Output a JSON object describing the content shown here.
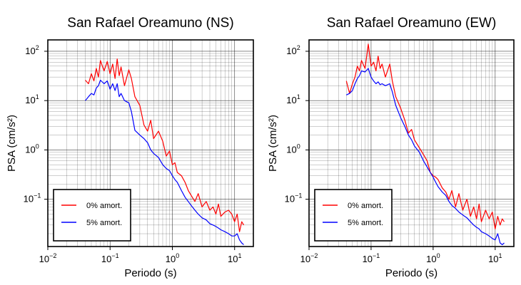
{
  "chart_data": [
    {
      "type": "line",
      "title": "San Rafael Oreamuno (NS)",
      "xlabel": "Periodo (s)",
      "ylabel": "PSA (cm/s²)",
      "xscale": "log",
      "yscale": "log",
      "xlim": [
        0.01,
        20
      ],
      "ylim": [
        0.011,
        170
      ],
      "grid": true,
      "legend_position": "bottom-left",
      "xticks": [
        0.01,
        0.1,
        1,
        10
      ],
      "yticks": [
        0.1,
        1,
        10,
        100
      ],
      "series": [
        {
          "name": "0% amort.",
          "color": "#ff0000",
          "x": [
            0.04,
            0.045,
            0.05,
            0.055,
            0.06,
            0.065,
            0.07,
            0.08,
            0.09,
            0.1,
            0.11,
            0.12,
            0.13,
            0.14,
            0.15,
            0.17,
            0.2,
            0.22,
            0.25,
            0.3,
            0.35,
            0.4,
            0.45,
            0.5,
            0.6,
            0.7,
            0.8,
            0.9,
            1.0,
            1.1,
            1.2,
            1.4,
            1.6,
            1.8,
            2.0,
            2.3,
            2.6,
            3.0,
            3.5,
            4.0,
            4.5,
            5.0,
            5.5,
            6.0,
            7.0,
            8.0,
            9.0,
            10.0,
            11.0,
            12.0,
            13.0,
            14.0
          ],
          "y": [
            26,
            22,
            35,
            25,
            45,
            30,
            65,
            40,
            62,
            35,
            55,
            28,
            70,
            32,
            48,
            20,
            42,
            28,
            12,
            8,
            3.2,
            2.4,
            4.0,
            1.7,
            2.4,
            1.5,
            0.75,
            0.95,
            0.5,
            0.55,
            0.35,
            0.3,
            0.22,
            0.15,
            0.12,
            0.09,
            0.13,
            0.07,
            0.09,
            0.06,
            0.07,
            0.05,
            0.08,
            0.045,
            0.055,
            0.06,
            0.05,
            0.035,
            0.05,
            0.022,
            0.035,
            0.03
          ]
        },
        {
          "name": "5% amort.",
          "color": "#0000ff",
          "x": [
            0.04,
            0.045,
            0.05,
            0.055,
            0.06,
            0.065,
            0.07,
            0.08,
            0.09,
            0.1,
            0.11,
            0.12,
            0.13,
            0.14,
            0.15,
            0.17,
            0.2,
            0.22,
            0.25,
            0.3,
            0.35,
            0.4,
            0.45,
            0.5,
            0.6,
            0.7,
            0.8,
            0.9,
            1.0,
            1.1,
            1.2,
            1.4,
            1.6,
            1.8,
            2.0,
            2.3,
            2.6,
            3.0,
            3.5,
            4.0,
            4.5,
            5.0,
            5.5,
            6.0,
            7.0,
            8.0,
            9.0,
            10.0,
            11.0,
            12.0,
            13.0,
            14.0
          ],
          "y": [
            10,
            12,
            14,
            13,
            18,
            20,
            26,
            22,
            25,
            17,
            22,
            16,
            22,
            12,
            14,
            10,
            9,
            6,
            2.5,
            2.0,
            1.7,
            1.4,
            1.0,
            0.85,
            0.7,
            0.5,
            0.42,
            0.38,
            0.3,
            0.25,
            0.22,
            0.15,
            0.11,
            0.09,
            0.075,
            0.06,
            0.05,
            0.042,
            0.038,
            0.032,
            0.03,
            0.028,
            0.026,
            0.024,
            0.022,
            0.02,
            0.018,
            0.018,
            0.02,
            0.015,
            0.013,
            0.012
          ]
        }
      ]
    },
    {
      "type": "line",
      "title": "San Rafael Oreamuno (EW)",
      "xlabel": "Periodo (s)",
      "ylabel": "PSA (cm/s²)",
      "xscale": "log",
      "yscale": "log",
      "xlim": [
        0.01,
        20
      ],
      "ylim": [
        0.011,
        170
      ],
      "grid": true,
      "legend_position": "bottom-left",
      "xticks": [
        0.01,
        0.1,
        1,
        10
      ],
      "yticks": [
        0.1,
        1,
        10,
        100
      ],
      "series": [
        {
          "name": "0% amort.",
          "color": "#ff0000",
          "x": [
            0.04,
            0.045,
            0.05,
            0.055,
            0.06,
            0.065,
            0.07,
            0.08,
            0.09,
            0.1,
            0.11,
            0.12,
            0.13,
            0.14,
            0.15,
            0.17,
            0.2,
            0.22,
            0.25,
            0.3,
            0.35,
            0.4,
            0.45,
            0.5,
            0.6,
            0.7,
            0.8,
            0.9,
            1.0,
            1.1,
            1.2,
            1.4,
            1.6,
            1.8,
            2.0,
            2.3,
            2.6,
            3.0,
            3.5,
            4.0,
            4.5,
            5.0,
            5.5,
            6.0,
            7.0,
            8.0,
            9.0,
            10.0,
            11.0,
            12.0,
            13.0,
            14.0
          ],
          "y": [
            25,
            14,
            22,
            30,
            50,
            40,
            65,
            45,
            140,
            50,
            60,
            40,
            80,
            45,
            55,
            30,
            55,
            25,
            12,
            7,
            4.0,
            2.2,
            2.6,
            1.6,
            1.1,
            0.8,
            0.6,
            0.35,
            0.3,
            0.28,
            0.25,
            0.17,
            0.14,
            0.1,
            0.15,
            0.07,
            0.13,
            0.06,
            0.1,
            0.045,
            0.07,
            0.04,
            0.08,
            0.035,
            0.06,
            0.04,
            0.055,
            0.025,
            0.045,
            0.03,
            0.04,
            0.035
          ]
        },
        {
          "name": "5% amort.",
          "color": "#0000ff",
          "x": [
            0.04,
            0.045,
            0.05,
            0.055,
            0.06,
            0.065,
            0.07,
            0.08,
            0.09,
            0.1,
            0.11,
            0.12,
            0.13,
            0.14,
            0.15,
            0.17,
            0.2,
            0.22,
            0.25,
            0.3,
            0.35,
            0.4,
            0.45,
            0.5,
            0.6,
            0.7,
            0.8,
            0.9,
            1.0,
            1.1,
            1.2,
            1.4,
            1.6,
            1.8,
            2.0,
            2.3,
            2.6,
            3.0,
            3.5,
            4.0,
            4.5,
            5.0,
            5.5,
            6.0,
            7.0,
            8.0,
            9.0,
            10.0,
            11.0,
            12.0,
            13.0,
            14.0
          ],
          "y": [
            13,
            14,
            16,
            22,
            28,
            32,
            40,
            38,
            45,
            30,
            25,
            22,
            24,
            21,
            22,
            20,
            22,
            15,
            8,
            4.5,
            3.0,
            2.0,
            1.6,
            1.2,
            0.9,
            0.6,
            0.45,
            0.35,
            0.28,
            0.22,
            0.18,
            0.14,
            0.12,
            0.09,
            0.075,
            0.065,
            0.055,
            0.048,
            0.042,
            0.035,
            0.03,
            0.027,
            0.025,
            0.022,
            0.02,
            0.018,
            0.016,
            0.015,
            0.02,
            0.013,
            0.012,
            0.013
          ]
        }
      ]
    }
  ]
}
